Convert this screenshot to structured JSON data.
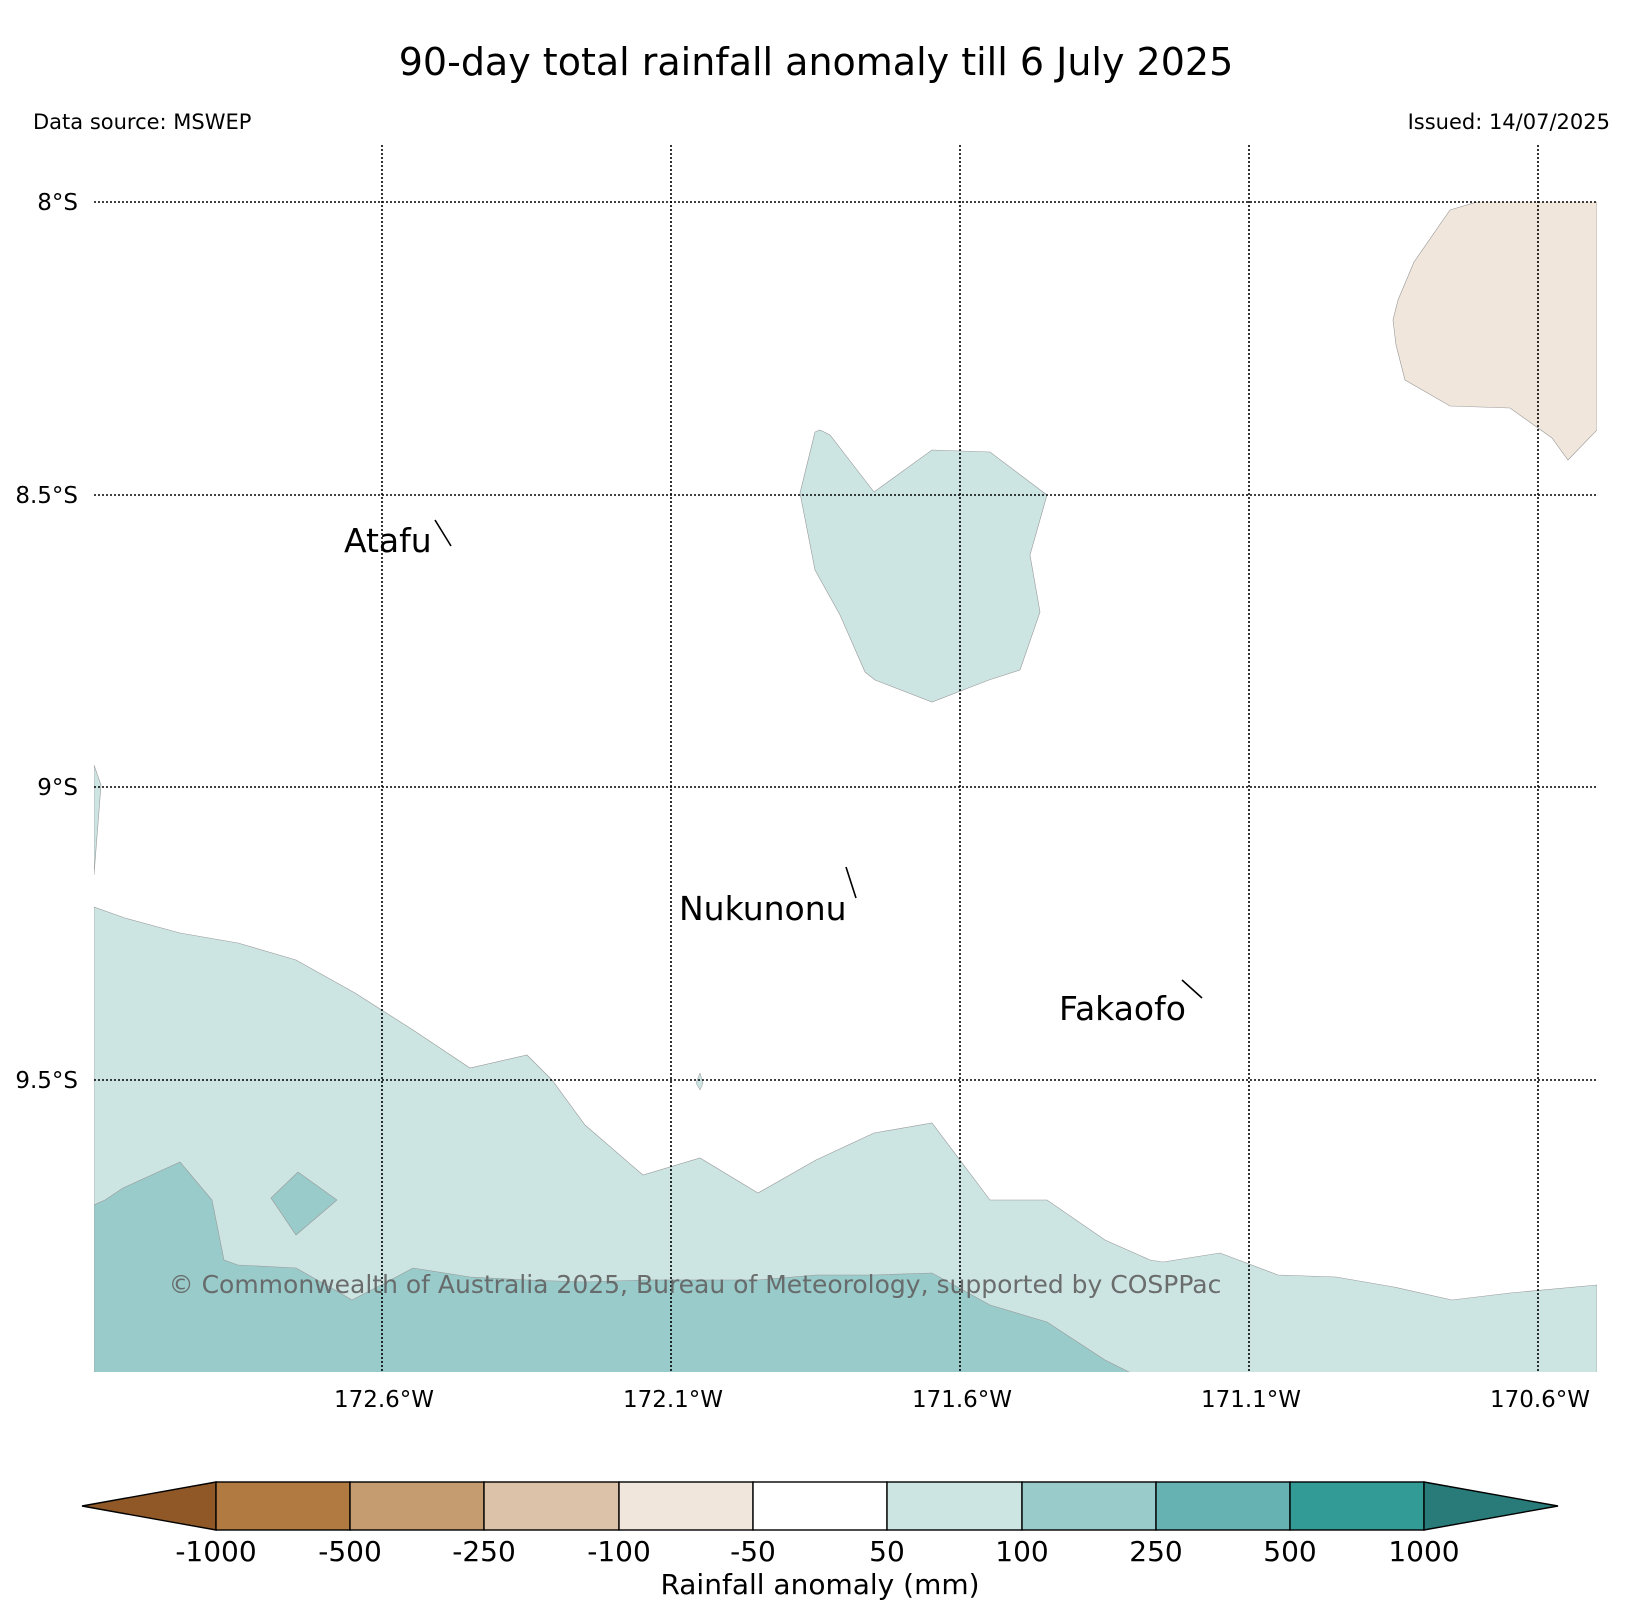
{
  "title": "90-day total rainfall anomaly till 6 July 2025",
  "data_source": "Data source: MSWEP",
  "issued": "Issued: 14/07/2025",
  "copyright": "© Commonwealth of Australia 2025, Bureau of Meteorology, supported by COSPPac",
  "map": {
    "latitude_labels": [
      "8°S",
      "8.5°S",
      "9°S",
      "9.5°S"
    ],
    "longitude_labels": [
      "172.6°W",
      "172.1°W",
      "171.6°W",
      "171.1°W",
      "170.6°W"
    ],
    "places": [
      "Atafu",
      "Nukunonu",
      "Fakaofo"
    ]
  },
  "legend": {
    "label": "Rainfall anomaly (mm)",
    "ticks": [
      "-1000",
      "-500",
      "-250",
      "-100",
      "-50",
      "50",
      "100",
      "250",
      "500",
      "1000"
    ],
    "colors": [
      "#8f5826",
      "#b07a40",
      "#c59c70",
      "#dbc2a8",
      "#f0e6dc",
      "#ffffff",
      "#cce5e3",
      "#99cbca",
      "#66b1b1",
      "#339b96",
      "#287b78"
    ]
  },
  "colors": {
    "anomaly_-100_-50": "#f0e6dc",
    "anomaly_50_100": "#cce5e3",
    "anomaly_100_250": "#99cbca"
  }
}
